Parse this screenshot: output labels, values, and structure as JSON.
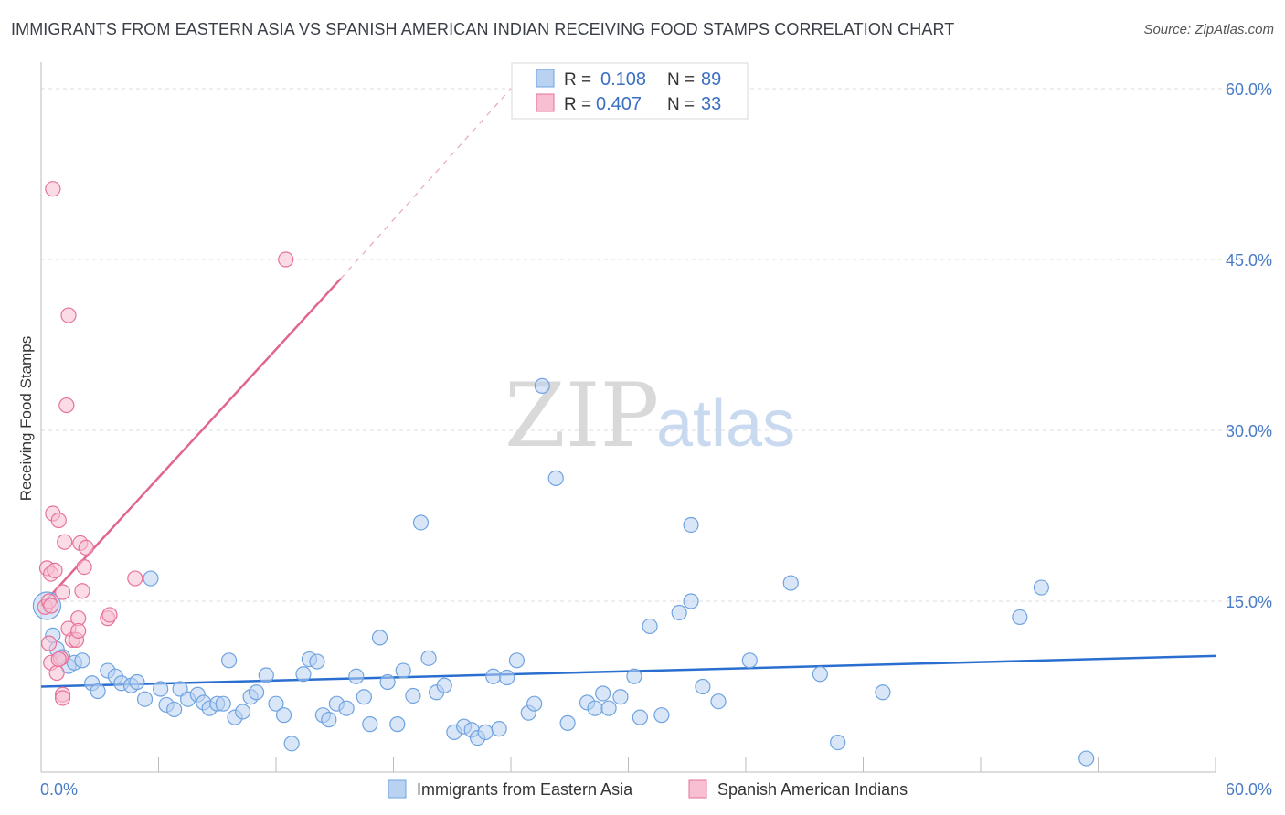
{
  "title": "IMMIGRANTS FROM EASTERN ASIA VS SPANISH AMERICAN INDIAN RECEIVING FOOD STAMPS CORRELATION CHART",
  "source": "Source: ZipAtlas.com",
  "watermark": {
    "zip": "ZIP",
    "atlas": "atlas"
  },
  "colors": {
    "blue": "#6fa3e0",
    "blue_fill": "#b9d2f2",
    "pink": "#e6729a",
    "pink_fill": "#f7bfd1",
    "blue_line": "#2a6fcf",
    "pink_line": "#e0668f"
  },
  "legend": {
    "rows": [
      {
        "r_label": "R =",
        "r_value": "0.108",
        "n_label": "N =",
        "n_value": "89"
      },
      {
        "r_label": "R =",
        "r_value": "0.407",
        "n_label": "N =",
        "n_value": "33"
      }
    ]
  },
  "chart_data": {
    "type": "scatter",
    "title": "IMMIGRANTS FROM EASTERN ASIA VS SPANISH AMERICAN INDIAN RECEIVING FOOD STAMPS CORRELATION CHART",
    "xlabel": "",
    "ylabel": "Receiving Food Stamps",
    "xlim": [
      0,
      60
    ],
    "ylim": [
      0,
      60
    ],
    "x_tick_labels": [
      "0.0%",
      "60.0%"
    ],
    "y_tick_labels": [
      "15.0%",
      "30.0%",
      "45.0%",
      "60.0%"
    ],
    "y_ticks": [
      15,
      30,
      45,
      60
    ],
    "grid": true,
    "legend_position": "top-center",
    "series": [
      {
        "name": "Immigrants from Eastern Asia",
        "r": 0.108,
        "n": 89,
        "trend": {
          "x": [
            0,
            60
          ],
          "y": [
            7.5,
            10.2
          ]
        },
        "points": [
          [
            0.3,
            14.6
          ],
          [
            0.6,
            12.0
          ],
          [
            0.8,
            10.8
          ],
          [
            1.1,
            10.1
          ],
          [
            1.4,
            9.3
          ],
          [
            1.7,
            9.6
          ],
          [
            2.1,
            9.8
          ],
          [
            2.6,
            7.8
          ],
          [
            2.9,
            7.1
          ],
          [
            3.4,
            8.9
          ],
          [
            3.8,
            8.4
          ],
          [
            4.1,
            7.8
          ],
          [
            4.6,
            7.6
          ],
          [
            4.9,
            7.9
          ],
          [
            5.3,
            6.4
          ],
          [
            5.6,
            17.0
          ],
          [
            6.1,
            7.3
          ],
          [
            6.4,
            5.9
          ],
          [
            6.8,
            5.5
          ],
          [
            7.1,
            7.3
          ],
          [
            7.5,
            6.4
          ],
          [
            8.0,
            6.8
          ],
          [
            8.3,
            6.1
          ],
          [
            8.6,
            5.6
          ],
          [
            9.0,
            6.0
          ],
          [
            9.3,
            6.0
          ],
          [
            9.6,
            9.8
          ],
          [
            9.9,
            4.8
          ],
          [
            10.3,
            5.3
          ],
          [
            10.7,
            6.6
          ],
          [
            11.0,
            7.0
          ],
          [
            11.5,
            8.5
          ],
          [
            12.0,
            6.0
          ],
          [
            12.4,
            5.0
          ],
          [
            12.8,
            2.5
          ],
          [
            13.4,
            8.6
          ],
          [
            13.7,
            9.9
          ],
          [
            14.1,
            9.7
          ],
          [
            14.4,
            5.0
          ],
          [
            14.7,
            4.6
          ],
          [
            15.1,
            6.0
          ],
          [
            15.6,
            5.6
          ],
          [
            16.1,
            8.4
          ],
          [
            16.5,
            6.6
          ],
          [
            16.8,
            4.2
          ],
          [
            17.3,
            11.8
          ],
          [
            17.7,
            7.9
          ],
          [
            18.2,
            4.2
          ],
          [
            18.5,
            8.9
          ],
          [
            19.0,
            6.7
          ],
          [
            19.4,
            21.9
          ],
          [
            19.8,
            10.0
          ],
          [
            20.2,
            7.0
          ],
          [
            20.6,
            7.6
          ],
          [
            21.1,
            3.5
          ],
          [
            21.6,
            4.0
          ],
          [
            22.0,
            3.7
          ],
          [
            22.3,
            3.0
          ],
          [
            22.7,
            3.5
          ],
          [
            23.1,
            8.4
          ],
          [
            23.4,
            3.8
          ],
          [
            23.8,
            8.3
          ],
          [
            24.3,
            9.8
          ],
          [
            24.9,
            5.2
          ],
          [
            25.2,
            6.0
          ],
          [
            25.6,
            33.9
          ],
          [
            26.3,
            25.8
          ],
          [
            26.9,
            4.3
          ],
          [
            27.9,
            6.1
          ],
          [
            28.3,
            5.6
          ],
          [
            28.7,
            6.9
          ],
          [
            29.0,
            5.6
          ],
          [
            29.6,
            6.6
          ],
          [
            30.3,
            8.4
          ],
          [
            30.6,
            4.8
          ],
          [
            31.1,
            12.8
          ],
          [
            31.7,
            5.0
          ],
          [
            32.6,
            14.0
          ],
          [
            33.2,
            15.0
          ],
          [
            33.2,
            21.7
          ],
          [
            33.8,
            7.5
          ],
          [
            34.6,
            6.2
          ],
          [
            36.2,
            9.8
          ],
          [
            38.3,
            16.6
          ],
          [
            39.8,
            8.6
          ],
          [
            40.7,
            2.6
          ],
          [
            43.0,
            7.0
          ],
          [
            50.0,
            13.6
          ],
          [
            51.1,
            16.2
          ],
          [
            53.4,
            1.2
          ]
        ]
      },
      {
        "name": "Spanish American Indians",
        "r": 0.407,
        "n": 33,
        "trend": {
          "x": [
            0,
            15.3
          ],
          "y": [
            14.6,
            43.3
          ]
        },
        "trend_dashed": {
          "x": [
            15.3,
            24
          ],
          "y": [
            43.3,
            60
          ]
        },
        "points": [
          [
            0.2,
            14.5
          ],
          [
            0.3,
            17.9
          ],
          [
            0.4,
            15.0
          ],
          [
            0.4,
            11.3
          ],
          [
            0.5,
            17.4
          ],
          [
            0.5,
            9.6
          ],
          [
            0.6,
            51.2
          ],
          [
            0.6,
            22.7
          ],
          [
            0.7,
            17.7
          ],
          [
            0.8,
            8.7
          ],
          [
            0.9,
            22.1
          ],
          [
            1.0,
            10.0
          ],
          [
            1.1,
            15.8
          ],
          [
            1.1,
            6.8
          ],
          [
            1.1,
            6.5
          ],
          [
            1.2,
            20.2
          ],
          [
            1.3,
            32.2
          ],
          [
            1.4,
            40.1
          ],
          [
            1.4,
            12.6
          ],
          [
            1.6,
            11.6
          ],
          [
            1.8,
            11.6
          ],
          [
            1.9,
            13.5
          ],
          [
            1.9,
            12.4
          ],
          [
            2.0,
            20.1
          ],
          [
            2.1,
            15.9
          ],
          [
            2.2,
            18.0
          ],
          [
            2.3,
            19.7
          ],
          [
            3.4,
            13.5
          ],
          [
            3.5,
            13.8
          ],
          [
            4.8,
            17.0
          ],
          [
            12.5,
            45.0
          ],
          [
            0.9,
            9.9
          ],
          [
            0.5,
            14.6
          ]
        ]
      }
    ]
  }
}
